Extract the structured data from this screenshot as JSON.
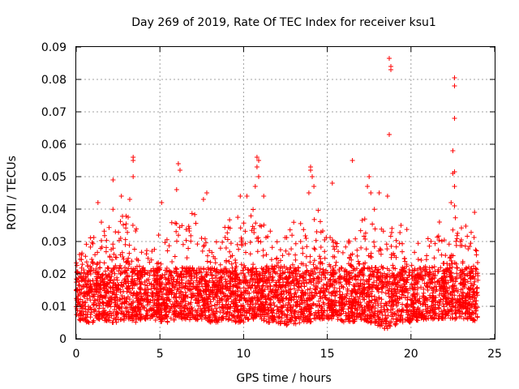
{
  "chart_data": {
    "type": "scatter",
    "title": "Day 269 of 2019, Rate Of TEC Index for receiver ksu1",
    "xlabel": "GPS time / hours",
    "ylabel": "ROTI / TECUs",
    "xlim": [
      0,
      25
    ],
    "ylim": [
      0,
      0.09
    ],
    "grid": true,
    "marker": "+",
    "series_color": "#ff0000",
    "x_ticks": [
      0,
      5,
      10,
      15,
      20,
      25
    ],
    "y_ticks": [
      0,
      0.01,
      0.02,
      0.03,
      0.04,
      0.05,
      0.06,
      0.07,
      0.08,
      0.09
    ],
    "x_tick_labels": [
      "0",
      "5",
      "10",
      "15",
      "20",
      "25"
    ],
    "y_tick_labels": [
      "0",
      "0.01",
      "0.02",
      "0.03",
      "0.04",
      "0.05",
      "0.06",
      "0.07",
      "0.08",
      "0.09"
    ],
    "envelope": {
      "x": [
        0.0,
        0.5,
        1.0,
        1.5,
        2.0,
        2.5,
        3.0,
        3.5,
        4.0,
        4.5,
        5.0,
        5.5,
        6.0,
        6.5,
        7.0,
        7.5,
        8.0,
        8.5,
        9.0,
        9.5,
        10.0,
        10.5,
        11.0,
        11.5,
        12.0,
        12.5,
        13.0,
        13.5,
        14.0,
        14.5,
        15.0,
        15.5,
        16.0,
        16.5,
        17.0,
        17.5,
        18.0,
        18.5,
        19.0,
        19.5,
        20.0,
        20.5,
        21.0,
        21.5,
        22.0,
        22.5,
        23.0,
        23.5,
        24.0
      ],
      "upper": [
        0.024,
        0.03,
        0.035,
        0.036,
        0.038,
        0.044,
        0.042,
        0.035,
        0.03,
        0.03,
        0.033,
        0.035,
        0.038,
        0.035,
        0.04,
        0.034,
        0.03,
        0.03,
        0.038,
        0.04,
        0.038,
        0.042,
        0.04,
        0.034,
        0.03,
        0.034,
        0.036,
        0.036,
        0.04,
        0.04,
        0.034,
        0.03,
        0.028,
        0.034,
        0.036,
        0.04,
        0.04,
        0.036,
        0.034,
        0.036,
        0.032,
        0.03,
        0.032,
        0.032,
        0.034,
        0.04,
        0.036,
        0.034,
        0.03
      ],
      "lower": [
        0.006,
        0.005,
        0.005,
        0.006,
        0.005,
        0.005,
        0.006,
        0.005,
        0.006,
        0.006,
        0.005,
        0.005,
        0.006,
        0.006,
        0.005,
        0.006,
        0.005,
        0.005,
        0.006,
        0.005,
        0.005,
        0.006,
        0.006,
        0.005,
        0.005,
        0.004,
        0.004,
        0.005,
        0.005,
        0.006,
        0.006,
        0.006,
        0.005,
        0.005,
        0.006,
        0.005,
        0.004,
        0.003,
        0.004,
        0.005,
        0.005,
        0.005,
        0.006,
        0.006,
        0.006,
        0.006,
        0.006,
        0.006,
        0.005
      ]
    },
    "outliers": [
      {
        "x": 3.4,
        "y": 0.056
      },
      {
        "x": 3.4,
        "y": 0.055
      },
      {
        "x": 3.4,
        "y": 0.05
      },
      {
        "x": 3.2,
        "y": 0.043
      },
      {
        "x": 2.7,
        "y": 0.044
      },
      {
        "x": 2.2,
        "y": 0.049
      },
      {
        "x": 1.3,
        "y": 0.042
      },
      {
        "x": 0.2,
        "y": 0.026
      },
      {
        "x": 6.1,
        "y": 0.054
      },
      {
        "x": 6.2,
        "y": 0.052
      },
      {
        "x": 6.0,
        "y": 0.046
      },
      {
        "x": 5.1,
        "y": 0.042
      },
      {
        "x": 7.8,
        "y": 0.045
      },
      {
        "x": 7.6,
        "y": 0.043
      },
      {
        "x": 10.8,
        "y": 0.056
      },
      {
        "x": 10.9,
        "y": 0.055
      },
      {
        "x": 10.8,
        "y": 0.053
      },
      {
        "x": 10.9,
        "y": 0.05
      },
      {
        "x": 10.7,
        "y": 0.047
      },
      {
        "x": 11.2,
        "y": 0.044
      },
      {
        "x": 9.8,
        "y": 0.044
      },
      {
        "x": 10.2,
        "y": 0.044
      },
      {
        "x": 14.0,
        "y": 0.053
      },
      {
        "x": 14.0,
        "y": 0.052
      },
      {
        "x": 14.1,
        "y": 0.05
      },
      {
        "x": 14.2,
        "y": 0.047
      },
      {
        "x": 13.9,
        "y": 0.045
      },
      {
        "x": 15.3,
        "y": 0.048
      },
      {
        "x": 16.5,
        "y": 0.055
      },
      {
        "x": 17.5,
        "y": 0.05
      },
      {
        "x": 17.4,
        "y": 0.047
      },
      {
        "x": 17.6,
        "y": 0.045
      },
      {
        "x": 18.1,
        "y": 0.045
      },
      {
        "x": 18.7,
        "y": 0.0865
      },
      {
        "x": 18.8,
        "y": 0.084
      },
      {
        "x": 18.8,
        "y": 0.083
      },
      {
        "x": 18.7,
        "y": 0.063
      },
      {
        "x": 18.6,
        "y": 0.044
      },
      {
        "x": 22.6,
        "y": 0.0805
      },
      {
        "x": 22.6,
        "y": 0.078
      },
      {
        "x": 22.6,
        "y": 0.068
      },
      {
        "x": 22.5,
        "y": 0.058
      },
      {
        "x": 22.6,
        "y": 0.0515
      },
      {
        "x": 22.5,
        "y": 0.051
      },
      {
        "x": 22.6,
        "y": 0.047
      },
      {
        "x": 22.4,
        "y": 0.042
      },
      {
        "x": 22.6,
        "y": 0.041
      },
      {
        "x": 21.7,
        "y": 0.036
      },
      {
        "x": 23.8,
        "y": 0.039
      }
    ]
  }
}
